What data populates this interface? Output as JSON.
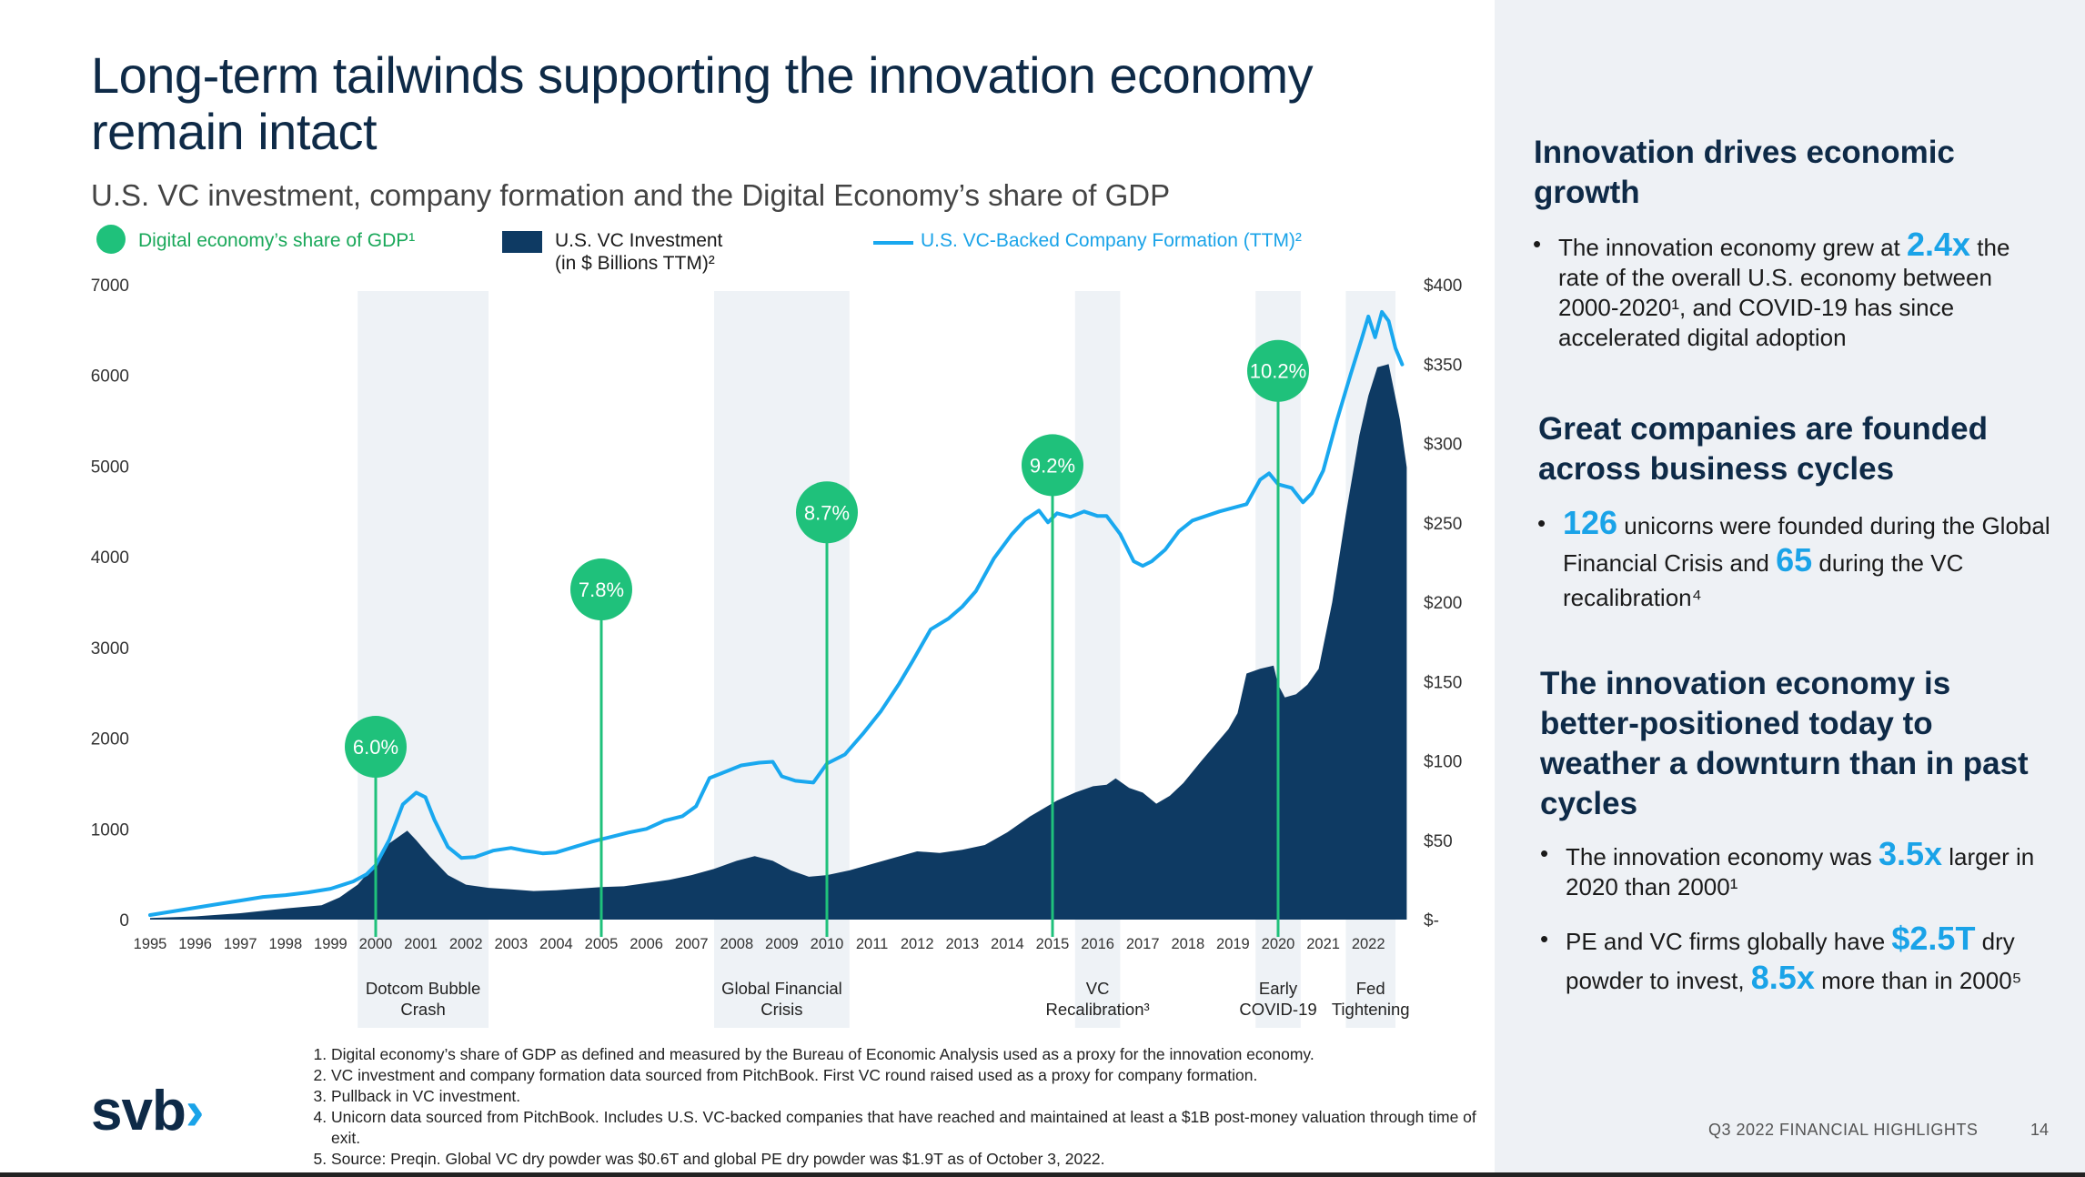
{
  "title": "Long-term tailwinds supporting the innovation economy remain intact",
  "subtitle": "U.S. VC investment, company formation and the Digital Economy’s share of GDP",
  "legend": {
    "gdp": "Digital economy’s share of GDP¹",
    "vc_line1": "U.S. VC Investment",
    "vc_line2": "(in $ Billions TTM)²",
    "formation": "U.S. VC-Backed Company Formation (TTM)²"
  },
  "colors": {
    "green": "#1fc17b",
    "navy": "#0e3a63",
    "blue": "#19a8ef",
    "shade": "#eef2f6",
    "title": "#0e2a47"
  },
  "chart_data": {
    "type": "area",
    "x_ticks": [
      "1995",
      "1996",
      "1997",
      "1998",
      "1999",
      "2000",
      "2001",
      "2002",
      "2003",
      "2004",
      "2005",
      "2006",
      "2007",
      "2008",
      "2009",
      "2010",
      "2011",
      "2012",
      "2013",
      "2014",
      "2015",
      "2016",
      "2017",
      "2018",
      "2019",
      "2020",
      "2021",
      "2022"
    ],
    "left_axis": {
      "ticks": [
        "0",
        "1000",
        "2000",
        "3000",
        "4000",
        "5000",
        "6000",
        "7000"
      ],
      "range": [
        0,
        7000
      ]
    },
    "right_axis": {
      "ticks": [
        "$-",
        "$50",
        "$100",
        "$150",
        "$200",
        "$250",
        "$300",
        "$350",
        "$400"
      ],
      "range": [
        0,
        400
      ]
    },
    "series": [
      {
        "name": "U.S. VC Investment (in $ Billions TTM)",
        "axis": "right",
        "kind": "area",
        "points": [
          [
            1995.0,
            1
          ],
          [
            1996.0,
            2
          ],
          [
            1997.0,
            4
          ],
          [
            1998.0,
            7
          ],
          [
            1998.8,
            9
          ],
          [
            1999.2,
            14
          ],
          [
            1999.6,
            22
          ],
          [
            2000.0,
            35
          ],
          [
            2000.3,
            48
          ],
          [
            2000.7,
            56
          ],
          [
            2000.9,
            50
          ],
          [
            2001.2,
            40
          ],
          [
            2001.6,
            28
          ],
          [
            2002.0,
            22
          ],
          [
            2002.5,
            20
          ],
          [
            2003.0,
            19
          ],
          [
            2003.5,
            18
          ],
          [
            2004.0,
            18.5
          ],
          [
            2004.5,
            19.5
          ],
          [
            2005.0,
            20.5
          ],
          [
            2005.5,
            21
          ],
          [
            2006.0,
            23
          ],
          [
            2006.5,
            25
          ],
          [
            2007.0,
            28
          ],
          [
            2007.5,
            32
          ],
          [
            2008.0,
            37
          ],
          [
            2008.4,
            40
          ],
          [
            2008.8,
            37
          ],
          [
            2009.2,
            31
          ],
          [
            2009.6,
            27
          ],
          [
            2010.0,
            28
          ],
          [
            2010.5,
            31
          ],
          [
            2011.0,
            35
          ],
          [
            2011.5,
            39
          ],
          [
            2012.0,
            43
          ],
          [
            2012.5,
            42
          ],
          [
            2013.0,
            44
          ],
          [
            2013.5,
            47
          ],
          [
            2014.0,
            55
          ],
          [
            2014.5,
            65
          ],
          [
            2014.8,
            70
          ],
          [
            2015.1,
            75
          ],
          [
            2015.5,
            80
          ],
          [
            2015.9,
            84
          ],
          [
            2016.2,
            85
          ],
          [
            2016.4,
            89
          ],
          [
            2016.7,
            83
          ],
          [
            2017.0,
            80
          ],
          [
            2017.3,
            73
          ],
          [
            2017.6,
            78
          ],
          [
            2017.9,
            86
          ],
          [
            2018.3,
            100
          ],
          [
            2018.6,
            110
          ],
          [
            2018.9,
            120
          ],
          [
            2019.1,
            130
          ],
          [
            2019.3,
            155
          ],
          [
            2019.6,
            158
          ],
          [
            2019.9,
            160
          ],
          [
            2020.0,
            148
          ],
          [
            2020.15,
            140
          ],
          [
            2020.4,
            142
          ],
          [
            2020.65,
            148
          ],
          [
            2020.9,
            158
          ],
          [
            2021.2,
            200
          ],
          [
            2021.5,
            255
          ],
          [
            2021.8,
            305
          ],
          [
            2022.0,
            330
          ],
          [
            2022.2,
            348
          ],
          [
            2022.45,
            350
          ],
          [
            2022.7,
            315
          ],
          [
            2022.85,
            285
          ]
        ]
      },
      {
        "name": "U.S. VC-Backed Company Formation (TTM)",
        "axis": "left",
        "kind": "line",
        "points": [
          [
            1995.0,
            50
          ],
          [
            1995.5,
            90
          ],
          [
            1996.0,
            130
          ],
          [
            1996.5,
            170
          ],
          [
            1997.0,
            210
          ],
          [
            1997.5,
            250
          ],
          [
            1998.0,
            270
          ],
          [
            1998.5,
            300
          ],
          [
            1999.0,
            340
          ],
          [
            1999.5,
            420
          ],
          [
            1999.8,
            500
          ],
          [
            2000.0,
            600
          ],
          [
            2000.3,
            880
          ],
          [
            2000.6,
            1270
          ],
          [
            2000.9,
            1400
          ],
          [
            2001.1,
            1350
          ],
          [
            2001.3,
            1100
          ],
          [
            2001.6,
            800
          ],
          [
            2001.9,
            680
          ],
          [
            2002.2,
            690
          ],
          [
            2002.6,
            760
          ],
          [
            2003.0,
            790
          ],
          [
            2003.3,
            760
          ],
          [
            2003.7,
            730
          ],
          [
            2004.0,
            740
          ],
          [
            2004.4,
            800
          ],
          [
            2004.8,
            860
          ],
          [
            2005.2,
            910
          ],
          [
            2005.6,
            960
          ],
          [
            2006.0,
            1000
          ],
          [
            2006.4,
            1090
          ],
          [
            2006.8,
            1140
          ],
          [
            2007.1,
            1250
          ],
          [
            2007.4,
            1560
          ],
          [
            2007.8,
            1640
          ],
          [
            2008.1,
            1700
          ],
          [
            2008.5,
            1730
          ],
          [
            2008.8,
            1740
          ],
          [
            2009.0,
            1580
          ],
          [
            2009.3,
            1530
          ],
          [
            2009.7,
            1510
          ],
          [
            2010.0,
            1720
          ],
          [
            2010.4,
            1820
          ],
          [
            2010.8,
            2050
          ],
          [
            2011.2,
            2300
          ],
          [
            2011.6,
            2600
          ],
          [
            2011.9,
            2850
          ],
          [
            2012.3,
            3200
          ],
          [
            2012.7,
            3320
          ],
          [
            2013.0,
            3450
          ],
          [
            2013.3,
            3620
          ],
          [
            2013.7,
            3980
          ],
          [
            2014.1,
            4250
          ],
          [
            2014.4,
            4410
          ],
          [
            2014.7,
            4510
          ],
          [
            2014.9,
            4380
          ],
          [
            2015.1,
            4480
          ],
          [
            2015.4,
            4440
          ],
          [
            2015.7,
            4500
          ],
          [
            2016.0,
            4450
          ],
          [
            2016.2,
            4450
          ],
          [
            2016.5,
            4250
          ],
          [
            2016.8,
            3950
          ],
          [
            2017.0,
            3900
          ],
          [
            2017.2,
            3950
          ],
          [
            2017.5,
            4080
          ],
          [
            2017.8,
            4280
          ],
          [
            2018.1,
            4400
          ],
          [
            2018.4,
            4450
          ],
          [
            2018.7,
            4500
          ],
          [
            2019.0,
            4540
          ],
          [
            2019.3,
            4580
          ],
          [
            2019.6,
            4850
          ],
          [
            2019.8,
            4920
          ],
          [
            2020.0,
            4800
          ],
          [
            2020.3,
            4760
          ],
          [
            2020.55,
            4600
          ],
          [
            2020.75,
            4700
          ],
          [
            2021.0,
            4950
          ],
          [
            2021.3,
            5500
          ],
          [
            2021.6,
            6000
          ],
          [
            2021.85,
            6400
          ],
          [
            2022.0,
            6650
          ],
          [
            2022.15,
            6420
          ],
          [
            2022.3,
            6700
          ],
          [
            2022.45,
            6600
          ],
          [
            2022.6,
            6300
          ],
          [
            2022.75,
            6120
          ]
        ]
      },
      {
        "name": "Digital economy’s share of GDP",
        "kind": "markers",
        "points": [
          [
            2000,
            "6.0%"
          ],
          [
            2005,
            "7.8%"
          ],
          [
            2010,
            "8.7%"
          ],
          [
            2015,
            "9.2%"
          ],
          [
            2020,
            "10.2%"
          ]
        ],
        "marker_y_left_axis": [
          1905,
          3640,
          4490,
          5010,
          6050
        ]
      }
    ],
    "shaded_periods": [
      {
        "from": 1999.6,
        "to": 2002.5,
        "label_lines": [
          "Dotcom Bubble",
          "Crash"
        ]
      },
      {
        "from": 2007.5,
        "to": 2010.5,
        "label_lines": [
          "Global Financial",
          "Crisis"
        ]
      },
      {
        "from": 2015.5,
        "to": 2016.5,
        "label_lines": [
          "VC",
          "Recalibration³"
        ]
      },
      {
        "from": 2019.5,
        "to": 2020.5,
        "label_lines": [
          "Early",
          "COVID-19"
        ]
      },
      {
        "from": 2021.5,
        "to": 2022.6,
        "label_lines": [
          "Fed",
          "Tightening"
        ]
      }
    ]
  },
  "footnotes": [
    "Digital economy’s share of GDP as defined and measured by the Bureau of Economic Analysis used as a proxy for the innovation economy.",
    "VC investment and company formation data sourced from PitchBook.  First VC round raised used as a proxy for company formation.",
    "Pullback in VC investment.",
    "Unicorn data sourced from PitchBook.  Includes U.S. VC-backed companies that have reached and maintained at least a $1B post-money valuation through time of exit.",
    "Source: Preqin. Global VC dry powder was $0.6T and global PE dry powder was $1.9T as of October 3,  2022."
  ],
  "logo": {
    "text": "svb",
    "chevron": "›"
  },
  "sidebar": {
    "section1": {
      "heading": "Innovation drives economic growth",
      "bullet_pre": "The innovation economy grew at ",
      "bullet_hl": "2.4x",
      "bullet_post": " the rate of the overall U.S. economy between 2000-2020¹, and COVID-19 has since accelerated digital adoption"
    },
    "section2": {
      "heading": "Great companies are founded across business cycles",
      "hl1": "126",
      "text1": " unicorns were founded during the Global Financial Crisis and ",
      "hl2": "65",
      "text2": " during the VC recalibration⁴"
    },
    "section3": {
      "heading": "The innovation economy is better-positioned today to weather a downturn than in past cycles",
      "b1_pre": "The innovation economy was ",
      "b1_hl": "3.5x",
      "b1_post": " larger in 2020 than 2000¹",
      "b2_pre": "PE and VC firms globally have ",
      "b2_hl": "$2.5T",
      "b2_mid": " dry powder to invest, ",
      "b2_hl2": "8.5x",
      "b2_post": " more than in 2000⁵"
    }
  },
  "footer": {
    "text": "Q3 2022 FINANCIAL HIGHLIGHTS",
    "page": "14"
  }
}
